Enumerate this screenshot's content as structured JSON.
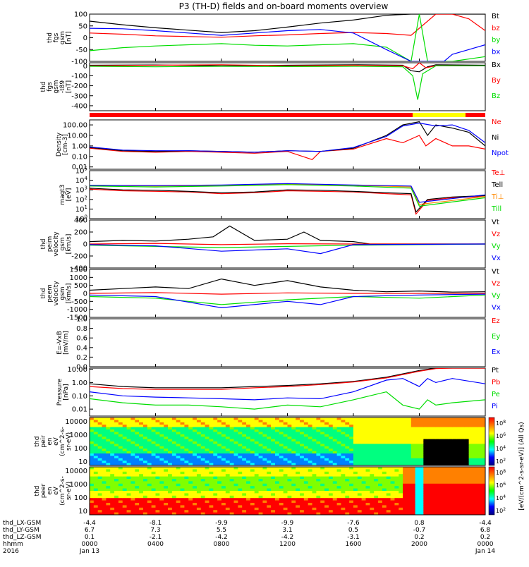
{
  "title": "P3 (TH-D) fields and on-board moments overview",
  "colors": {
    "black": "#000000",
    "red": "#ff0000",
    "green": "#00dd00",
    "blue": "#0000ff",
    "yellow": "#ffff00",
    "orange": "#ff8800"
  },
  "chart_data": [
    {
      "type": "line",
      "id": "fgs",
      "ylabel": [
        "thd",
        "fgs",
        "gsm",
        "[nT]"
      ],
      "ylim": [
        -100,
        100
      ],
      "yticks": [
        "100",
        "50",
        "0",
        "-50",
        "-100"
      ],
      "series": [
        {
          "name": "Bt",
          "color": "black",
          "x": [
            0,
            2,
            4,
            6,
            8,
            10,
            12,
            14,
            16,
            18,
            19.5,
            19.8,
            20.2,
            21,
            22,
            23,
            24
          ],
          "y": [
            70,
            55,
            42,
            32,
            22,
            30,
            45,
            62,
            75,
            95,
            100,
            100,
            100,
            100,
            100,
            100,
            100
          ]
        },
        {
          "name": "bz",
          "color": "red",
          "x": [
            0,
            2,
            4,
            6,
            8,
            10,
            12,
            14,
            16,
            18,
            19.5,
            21,
            22,
            23,
            24
          ],
          "y": [
            20,
            15,
            8,
            5,
            2,
            8,
            12,
            18,
            22,
            18,
            10,
            100,
            100,
            80,
            30
          ]
        },
        {
          "name": "by",
          "color": "green",
          "x": [
            0,
            2,
            4,
            6,
            8,
            10,
            12,
            14,
            16,
            18,
            19.5,
            20,
            20.5,
            22,
            24
          ],
          "y": [
            -55,
            -42,
            -35,
            -30,
            -25,
            -32,
            -35,
            -30,
            -25,
            -40,
            -100,
            100,
            -100,
            -100,
            -80
          ]
        },
        {
          "name": "bx",
          "color": "blue",
          "x": [
            0,
            2,
            4,
            6,
            8,
            10,
            12,
            14,
            16,
            18,
            19.5,
            20.5,
            21.5,
            22,
            23,
            24
          ],
          "y": [
            40,
            38,
            30,
            20,
            10,
            20,
            30,
            35,
            20,
            -50,
            -100,
            -100,
            -100,
            -70,
            -50,
            -30
          ]
        }
      ]
    },
    {
      "type": "line",
      "id": "fgs_dev",
      "ylabel": [
        "thd",
        "fgs",
        "gsm",
        "-t89",
        "[nT]"
      ],
      "ylim": [
        -450,
        30
      ],
      "yticks": [
        "0",
        "-100",
        "-200",
        "-300",
        "-400"
      ],
      "series": [
        {
          "name": "Bx",
          "color": "black",
          "x": [
            0,
            4,
            8,
            12,
            16,
            19,
            19.5,
            20,
            20.5,
            21,
            24
          ],
          "y": [
            5,
            8,
            0,
            5,
            10,
            5,
            -50,
            -60,
            -10,
            10,
            5
          ]
        },
        {
          "name": "By",
          "color": "red",
          "x": [
            0,
            4,
            8,
            12,
            16,
            19,
            19.6,
            20,
            20.4,
            21,
            24
          ],
          "y": [
            0,
            5,
            10,
            0,
            5,
            0,
            -30,
            40,
            -20,
            0,
            0
          ]
        },
        {
          "name": "Bz",
          "color": "green",
          "x": [
            0,
            4,
            8,
            12,
            16,
            19,
            19.6,
            19.9,
            20.2,
            21,
            24
          ],
          "y": [
            -5,
            -10,
            -5,
            -8,
            -5,
            -10,
            -100,
            -340,
            -80,
            0,
            0
          ]
        }
      ]
    },
    {
      "type": "bar",
      "id": "mode",
      "segments": [
        {
          "from": 0,
          "to": 19.6,
          "color": "red"
        },
        {
          "from": 19.6,
          "to": 22.8,
          "color": "yellow"
        },
        {
          "from": 22.8,
          "to": 24,
          "color": "red"
        }
      ]
    },
    {
      "type": "line",
      "id": "density",
      "ylabel": [
        "Density",
        "[cm-3]"
      ],
      "ylim": [
        0.006,
        300
      ],
      "ylog": true,
      "yticks": [
        "100.00",
        "10.00",
        "1.00",
        "0.10",
        "0.01"
      ],
      "series": [
        {
          "name": "Ne",
          "color": "red",
          "x": [
            0,
            2,
            4,
            6,
            8,
            10,
            12,
            13.5,
            14,
            16,
            18,
            19,
            20,
            20.4,
            21,
            22,
            23,
            24
          ],
          "y": [
            0.6,
            0.3,
            0.25,
            0.3,
            0.25,
            0.2,
            0.3,
            0.05,
            0.3,
            0.5,
            5,
            2,
            10,
            1,
            5,
            1,
            1,
            0.5
          ]
        },
        {
          "name": "Ni",
          "color": "black",
          "x": [
            0,
            2,
            4,
            6,
            8,
            10,
            12,
            14,
            16,
            18,
            19,
            20,
            20.5,
            21,
            22,
            23,
            24
          ],
          "y": [
            0.7,
            0.35,
            0.3,
            0.35,
            0.3,
            0.25,
            0.35,
            0.3,
            0.6,
            10,
            100,
            200,
            10,
            100,
            50,
            20,
            1
          ]
        },
        {
          "name": "Npot",
          "color": "blue",
          "x": [
            0,
            2,
            4,
            6,
            8,
            10,
            12,
            14,
            16,
            18,
            19,
            20,
            21,
            22,
            23,
            24
          ],
          "y": [
            0.8,
            0.4,
            0.35,
            0.35,
            0.3,
            0.25,
            0.35,
            0.3,
            0.7,
            8,
            80,
            150,
            80,
            100,
            30,
            2
          ]
        }
      ]
    },
    {
      "type": "line",
      "id": "temperature",
      "ylabel": [
        "magt3",
        "[eV]"
      ],
      "ylim": [
        1,
        100000
      ],
      "ylog": true,
      "yticks": [
        "10^5",
        "10^4",
        "10^3",
        "10^2",
        "10^1",
        "10^0"
      ],
      "series": [
        {
          "name": "Te⊥",
          "color": "red",
          "x": [
            0,
            2,
            4,
            6,
            8,
            10,
            12,
            14,
            16,
            18,
            19.5,
            19.8,
            20.5,
            22,
            24
          ],
          "y": [
            1200,
            800,
            700,
            600,
            400,
            500,
            800,
            700,
            600,
            400,
            300,
            3,
            80,
            150,
            200
          ]
        },
        {
          "name": "Tell",
          "color": "black",
          "x": [
            0,
            2,
            4,
            6,
            8,
            10,
            12,
            14,
            16,
            18,
            19.5,
            19.8,
            20.5,
            22,
            24
          ],
          "y": [
            1500,
            1000,
            900,
            700,
            500,
            600,
            1000,
            900,
            700,
            500,
            400,
            5,
            100,
            180,
            250
          ]
        },
        {
          "name": "Ti⊥",
          "color": "orange",
          "x": [
            0,
            4,
            8,
            12,
            16,
            19.5,
            20,
            24
          ],
          "y": [
            3000,
            2500,
            3000,
            4000,
            3000,
            2000,
            30,
            200
          ]
        },
        {
          "name": "Till",
          "color": "green",
          "x": [
            0,
            4,
            8,
            12,
            16,
            19.5,
            20,
            24
          ],
          "y": [
            2500,
            2000,
            2500,
            3500,
            2500,
            1500,
            20,
            150
          ]
        },
        {
          "name": "",
          "color": "blue",
          "x": [
            0,
            4,
            8,
            12,
            16,
            19.5,
            20,
            24
          ],
          "y": [
            3000,
            2800,
            3200,
            4500,
            3200,
            2500,
            50,
            300
          ]
        }
      ]
    },
    {
      "type": "line",
      "id": "peim",
      "ylabel": [
        "thd",
        "peim",
        "velocity",
        "gsm",
        "[km/s]"
      ],
      "ylim": [
        -400,
        400
      ],
      "yticks": [
        "400",
        "200",
        "0",
        "-200",
        "-400"
      ],
      "series": [
        {
          "name": "Vt",
          "color": "black",
          "x": [
            0,
            2,
            4,
            6,
            7.5,
            8.5,
            10,
            12,
            13,
            14,
            16,
            17,
            24
          ],
          "y": [
            40,
            60,
            50,
            80,
            120,
            300,
            60,
            80,
            200,
            60,
            40,
            0,
            0
          ]
        },
        {
          "name": "Vz",
          "color": "red",
          "x": [
            0,
            4,
            8,
            12,
            16,
            24
          ],
          "y": [
            0,
            10,
            -10,
            5,
            0,
            0
          ]
        },
        {
          "name": "Vy",
          "color": "green",
          "x": [
            0,
            4,
            8,
            12,
            16,
            24
          ],
          "y": [
            -20,
            -40,
            -60,
            -40,
            -20,
            0
          ]
        },
        {
          "name": "Vx",
          "color": "blue",
          "x": [
            0,
            4,
            8,
            12,
            14,
            16,
            24
          ],
          "y": [
            -10,
            -30,
            -120,
            -80,
            -160,
            -10,
            0
          ]
        }
      ]
    },
    {
      "type": "line",
      "id": "peem",
      "ylabel": [
        "thd",
        "peem",
        "velocity",
        "gsm",
        "[km/s]"
      ],
      "ylim": [
        -1500,
        1500
      ],
      "yticks": [
        "1500",
        "1000",
        "500",
        "0",
        "-500",
        "-1000",
        "-1500"
      ],
      "series": [
        {
          "name": "Vt",
          "color": "black",
          "x": [
            0,
            2,
            4,
            6,
            8,
            10,
            12,
            14,
            16,
            18,
            20,
            22,
            24
          ],
          "y": [
            200,
            300,
            400,
            300,
            900,
            500,
            800,
            400,
            200,
            100,
            150,
            80,
            100
          ]
        },
        {
          "name": "Vz",
          "color": "red",
          "x": [
            0,
            4,
            8,
            12,
            16,
            20,
            24
          ],
          "y": [
            0,
            50,
            -50,
            30,
            0,
            0,
            0
          ]
        },
        {
          "name": "Vy",
          "color": "green",
          "x": [
            0,
            4,
            8,
            12,
            16,
            20,
            24
          ],
          "y": [
            -200,
            -300,
            -700,
            -400,
            -200,
            -300,
            -100
          ]
        },
        {
          "name": "Vx",
          "color": "blue",
          "x": [
            0,
            4,
            8,
            12,
            14,
            16,
            20,
            24
          ],
          "y": [
            -100,
            -200,
            -900,
            -500,
            -700,
            -200,
            -100,
            -50
          ]
        }
      ]
    },
    {
      "type": "line",
      "id": "efield",
      "ylabel": [
        "E=-VxB",
        "[mV/m]"
      ],
      "ylim": [
        0,
        1
      ],
      "yticks": [
        "1.0",
        "0.8",
        "0.6",
        "0.4",
        "0.2",
        "0.0"
      ],
      "series": [
        {
          "name": "Ez",
          "color": "red",
          "x": [],
          "y": []
        },
        {
          "name": "Ey",
          "color": "green",
          "x": [],
          "y": []
        },
        {
          "name": "Ex",
          "color": "blue",
          "x": [],
          "y": []
        }
      ]
    },
    {
      "type": "line",
      "id": "pressure",
      "ylabel": [
        "Pressure",
        "[nPa]"
      ],
      "ylim": [
        0.003,
        12
      ],
      "ylog": true,
      "yticks": [
        "10.00",
        "1.00",
        "0.10",
        "0.01"
      ],
      "series": [
        {
          "name": "Pt",
          "color": "black",
          "x": [
            0,
            2,
            4,
            6,
            8,
            10,
            12,
            14,
            16,
            18,
            20,
            21,
            22,
            23,
            24
          ],
          "y": [
            0.8,
            0.5,
            0.4,
            0.4,
            0.4,
            0.5,
            0.6,
            0.8,
            1.2,
            2.5,
            8,
            12,
            12,
            12,
            12
          ]
        },
        {
          "name": "Pb",
          "color": "red",
          "x": [
            0,
            2,
            4,
            6,
            8,
            10,
            12,
            14,
            16,
            18,
            20,
            21,
            22,
            23,
            24
          ],
          "y": [
            0.5,
            0.35,
            0.3,
            0.3,
            0.3,
            0.4,
            0.5,
            0.7,
            1.1,
            2.2,
            7,
            11,
            12,
            12,
            12
          ]
        },
        {
          "name": "Pe",
          "color": "green",
          "x": [
            0,
            2,
            4,
            6,
            8,
            10,
            12,
            14,
            16,
            18,
            19,
            20,
            20.5,
            21,
            22,
            24
          ],
          "y": [
            0.06,
            0.03,
            0.02,
            0.02,
            0.015,
            0.01,
            0.02,
            0.015,
            0.05,
            0.2,
            0.02,
            0.01,
            0.05,
            0.02,
            0.03,
            0.05
          ]
        },
        {
          "name": "Pi",
          "color": "blue",
          "x": [
            0,
            2,
            4,
            6,
            8,
            10,
            12,
            14,
            16,
            18,
            19,
            20,
            20.5,
            21,
            22,
            24
          ],
          "y": [
            0.2,
            0.1,
            0.08,
            0.07,
            0.06,
            0.05,
            0.07,
            0.06,
            0.2,
            1.5,
            2,
            0.5,
            2,
            1,
            2,
            0.8
          ]
        }
      ]
    },
    {
      "type": "heatmap",
      "id": "peir",
      "ylabel": [
        "thd",
        "peir",
        "en",
        "eV",
        "(cm^2-s-",
        "sr-eV)"
      ],
      "ylog": true,
      "ylim": [
        5,
        20000
      ],
      "yticks": [
        "10000",
        "1000",
        "100",
        "10"
      ]
    },
    {
      "type": "heatmap",
      "id": "peer",
      "ylabel": [
        "thd",
        "peer",
        "en",
        "eV",
        "(cm^2-s-",
        "sr-eV)"
      ],
      "ylog": true,
      "ylim": [
        5,
        20000
      ],
      "yticks": [
        "10000",
        "1000",
        "100",
        "10"
      ]
    }
  ],
  "colorbar": {
    "ticks_top": [
      "10^8",
      "10^6",
      "10^4",
      "10^2"
    ],
    "ticks_bottom": [
      "10^8",
      "10^6",
      "10^4",
      "10^2"
    ],
    "label": "[eV/(cm^2-s-sr-eV)] (All Qs)"
  },
  "xaxis": {
    "rows": [
      {
        "label": "thd_LX-GSM",
        "values": [
          "-4.4",
          "-8.1",
          "-9.9",
          "-9.9",
          "-7.6",
          "0.8",
          "-4.4"
        ]
      },
      {
        "label": "thd_LY-GSM",
        "values": [
          "6.7",
          "7.3",
          "5.5",
          "3.1",
          "0.5",
          "-0.7",
          "6.8"
        ]
      },
      {
        "label": "thd_LZ-GSM",
        "values": [
          "0.1",
          "-2.1",
          "-4.2",
          "-4.2",
          "-3.1",
          "0.2",
          "0.2"
        ]
      },
      {
        "label": "hhmm",
        "values": [
          "0000",
          "0400",
          "0800",
          "1200",
          "1600",
          "2000",
          "0000"
        ]
      },
      {
        "label": "2016",
        "values": [
          "Jan 13",
          "",
          "",
          "",
          "",
          "",
          "Jan 14"
        ]
      }
    ],
    "hours": [
      0,
      4,
      8,
      12,
      16,
      20,
      24
    ]
  }
}
